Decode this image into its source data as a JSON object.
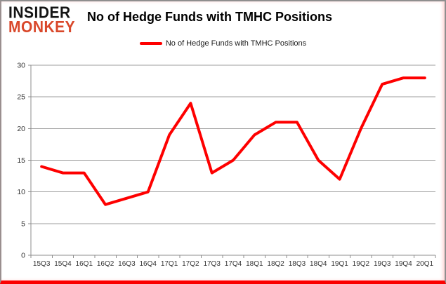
{
  "branding": {
    "logo_line1": "INSIDER",
    "logo_line2": "MONKEY",
    "logo_color_primary": "#141414",
    "logo_color_secondary": "#d9482b"
  },
  "header": {
    "title": "No of Hedge Funds with TMHC Positions"
  },
  "legend": {
    "label": "No of Hedge Funds with TMHC Positions",
    "swatch_color": "#fe0000"
  },
  "chart_data": {
    "type": "line",
    "title": "No of Hedge Funds with TMHC Positions",
    "categories": [
      "15Q3",
      "15Q4",
      "16Q1",
      "16Q2",
      "16Q3",
      "16Q4",
      "17Q1",
      "17Q2",
      "17Q3",
      "17Q4",
      "18Q1",
      "18Q2",
      "18Q3",
      "18Q4",
      "19Q1",
      "19Q2",
      "19Q3",
      "19Q4",
      "20Q1"
    ],
    "series": [
      {
        "name": "No of Hedge Funds with TMHC Positions",
        "values": [
          14,
          13,
          13,
          8,
          9,
          10,
          19,
          24,
          13,
          15,
          19,
          21,
          21,
          15,
          12,
          20,
          27,
          28,
          28
        ],
        "color": "#fe0000"
      }
    ],
    "xlabel": "",
    "ylabel": "",
    "ylim": [
      0,
      30
    ],
    "ytick_interval": 5,
    "grid": true,
    "legend_position": "top-center"
  },
  "chart_style": {
    "grid_color": "#9c9c9c",
    "axis_color": "#8c8c8c",
    "tick_label_color": "#333333",
    "line_width": 4,
    "frame_bottom_color": "#fb0000"
  }
}
